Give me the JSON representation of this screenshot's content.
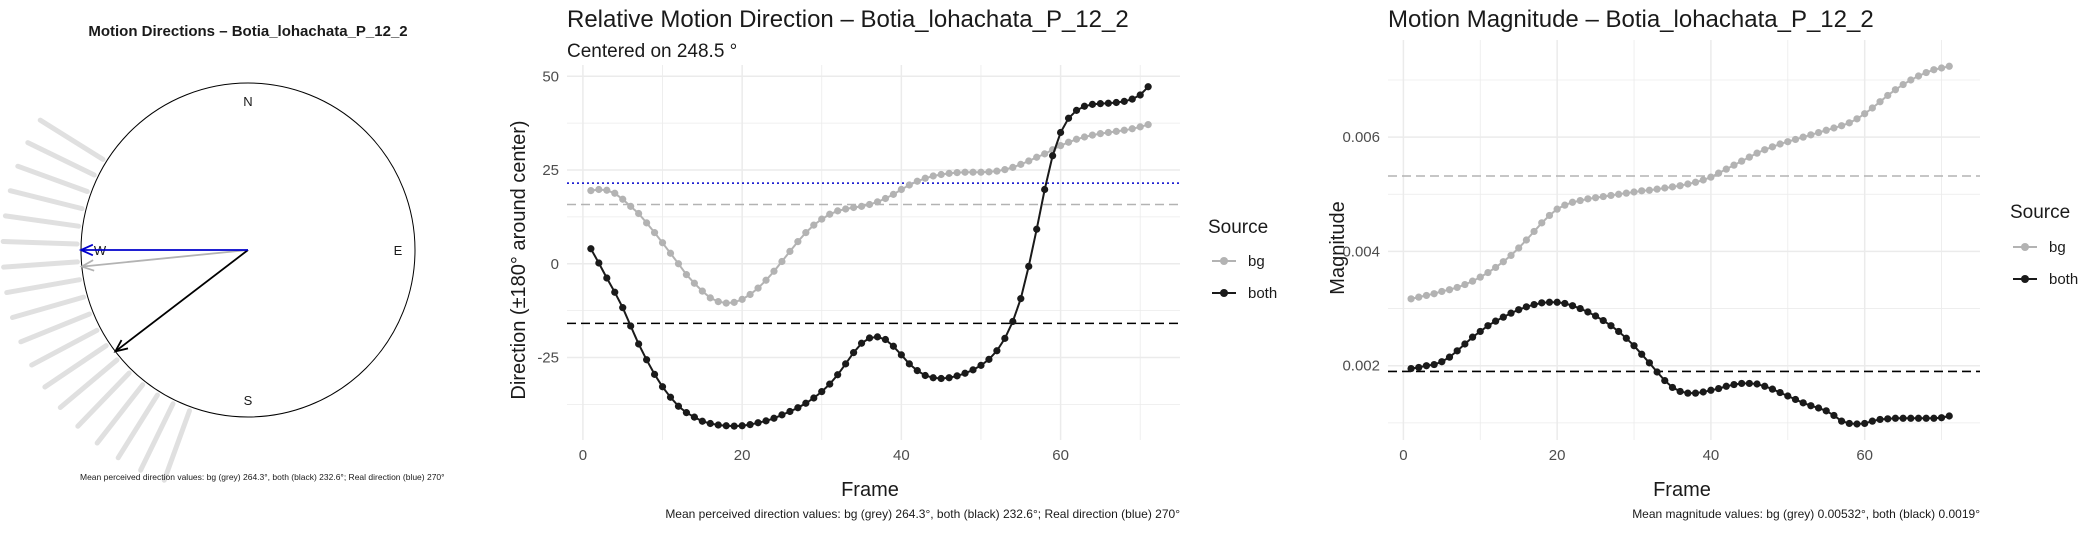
{
  "compass": {
    "title": "Motion Directions – Botia_lohachata_P_12_2",
    "cardinals": {
      "n": "N",
      "e": "E",
      "s": "S",
      "w": "W"
    },
    "caption": "Mean perceived direction values: bg (grey) 264.3°, both (black) 232.6°; Real direction (blue) 270°",
    "arrows": [
      {
        "name": "bg",
        "angle": 264.3,
        "color": "#b3b3b3"
      },
      {
        "name": "both",
        "angle": 232.6,
        "color": "#000000"
      },
      {
        "name": "real",
        "angle": 270,
        "color": "#0000cc"
      }
    ],
    "spoke_color": "#e0e0e0"
  },
  "direction_panel": {
    "title": "Relative Motion Direction – Botia_lohachata_P_12_2",
    "subtitle": "Centered on  248.5 °",
    "xlabel": "Frame",
    "ylabel": "Direction (±180° around center)",
    "caption": "Mean perceived direction values: bg (grey) 264.3°, both (black) 232.6°; Real direction (blue) 270°",
    "legend_title": "Source",
    "legend_items": [
      "bg",
      "both"
    ]
  },
  "magnitude_panel": {
    "title": "Motion Magnitude – Botia_lohachata_P_12_2",
    "xlabel": "Frame",
    "ylabel": "Magnitude",
    "caption": "Mean magnitude values: bg (grey) 0.00532°, both (black) 0.0019°",
    "legend_title": "Source",
    "legend_items": [
      "bg",
      "both"
    ]
  },
  "colors": {
    "bg": "#b3b3b3",
    "both": "#1a1a1a",
    "real": "#0000cc",
    "grid": "#ebebeb"
  },
  "chart_data": [
    {
      "type": "line",
      "title": "Relative Motion Direction – Botia_lohachata_P_12_2",
      "xlabel": "Frame",
      "ylabel": "Direction (±180° around center)",
      "xlim": [
        -2,
        75
      ],
      "ylim": [
        -47,
        53
      ],
      "xticks": [
        0,
        20,
        40,
        60
      ],
      "yticks": [
        -25,
        0,
        25,
        50
      ],
      "hlines": [
        {
          "y": 15.8,
          "color": "#b3b3b3",
          "style": "dashed"
        },
        {
          "y": -15.9,
          "color": "#000000",
          "style": "dashed"
        },
        {
          "y": 21.5,
          "color": "#0000cc",
          "style": "dotted"
        }
      ],
      "series": [
        {
          "name": "bg",
          "color": "#b3b3b3",
          "x": [
            1,
            2,
            3,
            4,
            5,
            6,
            7,
            8,
            9,
            10,
            11,
            12,
            13,
            14,
            15,
            16,
            17,
            18,
            19,
            20,
            21,
            22,
            23,
            24,
            25,
            26,
            27,
            28,
            29,
            30,
            31,
            32,
            33,
            34,
            35,
            36,
            37,
            38,
            39,
            40,
            41,
            42,
            43,
            44,
            45,
            46,
            47,
            48,
            49,
            50,
            51,
            52,
            53,
            54,
            55,
            56,
            57,
            58,
            59,
            60,
            61,
            62,
            63,
            64,
            65,
            66,
            67,
            68,
            69,
            70,
            71
          ],
          "y": [
            19.5,
            19.8,
            19.6,
            18.8,
            17.2,
            15.3,
            13.4,
            10.9,
            8.3,
            5.6,
            2.8,
            0.0,
            -2.9,
            -5.2,
            -7.3,
            -9.1,
            -10.1,
            -10.5,
            -10.3,
            -9.5,
            -8.2,
            -6.5,
            -4.4,
            -2.0,
            0.6,
            3.3,
            5.9,
            8.3,
            10.3,
            11.9,
            13.2,
            14.1,
            14.6,
            15.0,
            15.3,
            15.8,
            16.5,
            17.4,
            18.5,
            19.8,
            21.0,
            22.0,
            22.8,
            23.4,
            23.8,
            24.1,
            24.3,
            24.4,
            24.4,
            24.4,
            24.5,
            24.7,
            25.1,
            25.7,
            26.5,
            27.4,
            28.4,
            29.3,
            30.4,
            31.5,
            32.4,
            33.2,
            33.8,
            34.3,
            34.7,
            35.0,
            35.3,
            35.6,
            36.0,
            36.5,
            37.1
          ]
        },
        {
          "name": "both",
          "color": "#1a1a1a",
          "x": [
            1,
            2,
            3,
            4,
            5,
            6,
            7,
            8,
            9,
            10,
            11,
            12,
            13,
            14,
            15,
            16,
            17,
            18,
            19,
            20,
            21,
            22,
            23,
            24,
            25,
            26,
            27,
            28,
            29,
            30,
            31,
            32,
            33,
            34,
            35,
            36,
            37,
            38,
            39,
            40,
            41,
            42,
            43,
            44,
            45,
            46,
            47,
            48,
            49,
            50,
            51,
            52,
            53,
            54,
            55,
            56,
            57,
            58,
            59,
            60,
            61,
            62,
            63,
            64,
            65,
            66,
            67,
            68,
            69,
            70,
            71
          ],
          "y": [
            4.0,
            0.2,
            -3.8,
            -7.6,
            -11.7,
            -16.6,
            -21.4,
            -25.6,
            -29.5,
            -32.8,
            -35.6,
            -38.0,
            -39.7,
            -40.9,
            -42.0,
            -42.6,
            -43.0,
            -43.2,
            -43.3,
            -43.2,
            -42.9,
            -42.4,
            -41.9,
            -41.2,
            -40.3,
            -39.4,
            -38.4,
            -37.2,
            -35.8,
            -34.1,
            -32.1,
            -29.6,
            -26.7,
            -23.7,
            -21.2,
            -19.8,
            -19.5,
            -20.2,
            -22.0,
            -24.3,
            -26.7,
            -28.5,
            -29.8,
            -30.4,
            -30.6,
            -30.4,
            -29.9,
            -29.2,
            -28.3,
            -27.1,
            -25.5,
            -23.2,
            -19.9,
            -15.4,
            -9.3,
            -0.7,
            9.2,
            19.8,
            28.8,
            35.0,
            38.8,
            40.9,
            42.0,
            42.5,
            42.7,
            42.8,
            43.0,
            43.3,
            43.9,
            45.0,
            47.2
          ]
        }
      ]
    },
    {
      "type": "line",
      "title": "Motion Magnitude – Botia_lohachata_P_12_2",
      "xlabel": "Frame",
      "ylabel": "Magnitude",
      "xlim": [
        -2,
        75
      ],
      "ylim": [
        0.0007,
        0.0077
      ],
      "xticks": [
        0,
        20,
        40,
        60
      ],
      "yticks": [
        0.002,
        0.004,
        0.006
      ],
      "ytick_labels": [
        "0.002",
        "0.004",
        "0.006"
      ],
      "hlines": [
        {
          "y": 0.00532,
          "color": "#b3b3b3",
          "style": "dashed"
        },
        {
          "y": 0.0019,
          "color": "#000000",
          "style": "dashed"
        }
      ],
      "series": [
        {
          "name": "bg",
          "color": "#b3b3b3",
          "x": [
            1,
            2,
            3,
            4,
            5,
            6,
            7,
            8,
            9,
            10,
            11,
            12,
            13,
            14,
            15,
            16,
            17,
            18,
            19,
            20,
            21,
            22,
            23,
            24,
            25,
            26,
            27,
            28,
            29,
            30,
            31,
            32,
            33,
            34,
            35,
            36,
            37,
            38,
            39,
            40,
            41,
            42,
            43,
            44,
            45,
            46,
            47,
            48,
            49,
            50,
            51,
            52,
            53,
            54,
            55,
            56,
            57,
            58,
            59,
            60,
            61,
            62,
            63,
            64,
            65,
            66,
            67,
            68,
            69,
            70,
            71
          ],
          "y": [
            0.00317,
            0.0032,
            0.00323,
            0.00326,
            0.0033,
            0.00333,
            0.00337,
            0.00342,
            0.00348,
            0.00355,
            0.00363,
            0.00372,
            0.00382,
            0.00393,
            0.00406,
            0.0042,
            0.00435,
            0.0045,
            0.00463,
            0.00474,
            0.00481,
            0.00486,
            0.00489,
            0.00492,
            0.00494,
            0.00496,
            0.00498,
            0.005,
            0.00502,
            0.00504,
            0.00506,
            0.00507,
            0.00509,
            0.00511,
            0.00513,
            0.00515,
            0.00518,
            0.00521,
            0.00525,
            0.0053,
            0.00537,
            0.00544,
            0.00551,
            0.00558,
            0.00565,
            0.00572,
            0.00578,
            0.00583,
            0.00588,
            0.00592,
            0.00596,
            0.006,
            0.00604,
            0.00608,
            0.00612,
            0.00616,
            0.0062,
            0.00625,
            0.00632,
            0.00641,
            0.00651,
            0.00662,
            0.00673,
            0.00683,
            0.00692,
            0.007,
            0.00707,
            0.00713,
            0.00718,
            0.00721,
            0.00724
          ]
        },
        {
          "name": "both",
          "color": "#1a1a1a",
          "x": [
            1,
            2,
            3,
            4,
            5,
            6,
            7,
            8,
            9,
            10,
            11,
            12,
            13,
            14,
            15,
            16,
            17,
            18,
            19,
            20,
            21,
            22,
            23,
            24,
            25,
            26,
            27,
            28,
            29,
            30,
            31,
            32,
            33,
            34,
            35,
            36,
            37,
            38,
            39,
            40,
            41,
            42,
            43,
            44,
            45,
            46,
            47,
            48,
            49,
            50,
            51,
            52,
            53,
            54,
            55,
            56,
            57,
            58,
            59,
            60,
            61,
            62,
            63,
            64,
            65,
            66,
            67,
            68,
            69,
            70,
            71
          ],
          "y": [
            0.00195,
            0.00197,
            0.002,
            0.00202,
            0.00207,
            0.00215,
            0.00226,
            0.00238,
            0.0025,
            0.0026,
            0.0027,
            0.00278,
            0.00285,
            0.00292,
            0.00298,
            0.00303,
            0.00307,
            0.0031,
            0.00311,
            0.00311,
            0.00309,
            0.00305,
            0.003,
            0.00294,
            0.00287,
            0.00279,
            0.0027,
            0.0026,
            0.00248,
            0.00235,
            0.0022,
            0.00205,
            0.00189,
            0.00174,
            0.00162,
            0.00155,
            0.00152,
            0.00152,
            0.00154,
            0.00157,
            0.0016,
            0.00164,
            0.00167,
            0.00169,
            0.00169,
            0.00168,
            0.00164,
            0.00159,
            0.00153,
            0.00147,
            0.00141,
            0.00135,
            0.0013,
            0.00126,
            0.00121,
            0.00113,
            0.00103,
            0.00099,
            0.00098,
            0.00099,
            0.00103,
            0.00106,
            0.00107,
            0.00108,
            0.00108,
            0.00108,
            0.00108,
            0.00108,
            0.00108,
            0.00109,
            0.00112
          ]
        }
      ]
    }
  ]
}
